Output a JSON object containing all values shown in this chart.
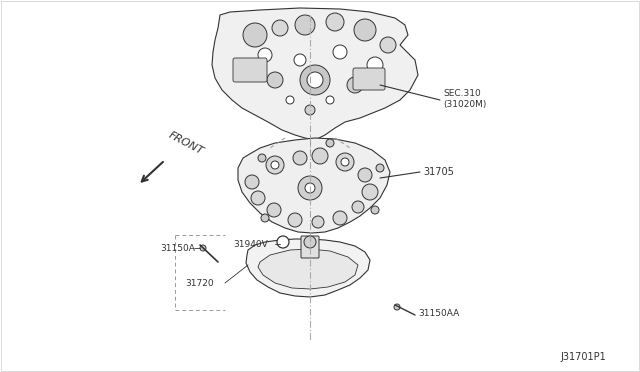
{
  "background_color": "#ffffff",
  "fig_width": 6.4,
  "fig_height": 3.72,
  "dpi": 100,
  "diagram_id": "J31701P1",
  "front_label": "FRONT",
  "labels": {
    "sec310": "SEC.310\n(31020M)",
    "part31705": "31705",
    "part31150A": "31150A",
    "part31940V": "31940V",
    "part31720": "31720",
    "part31150AA": "31150AA"
  },
  "line_color": "#333333",
  "text_color": "#333333",
  "line_color_light": "#555555"
}
